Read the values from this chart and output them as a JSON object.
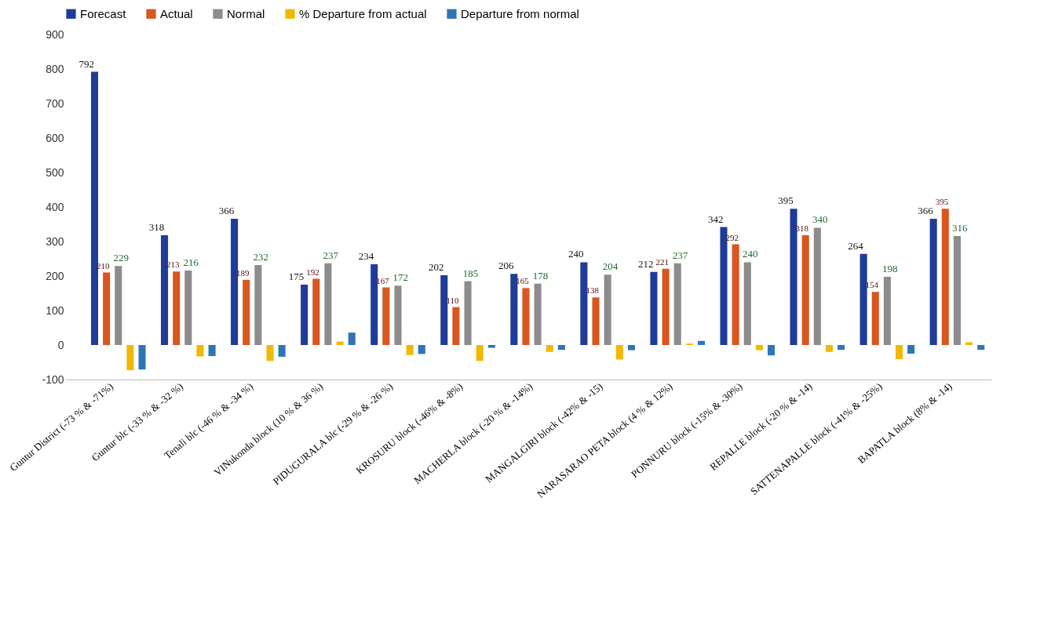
{
  "chart_data": {
    "type": "bar",
    "categories": [
      "Guntur District (-73 % & -71%)",
      "Guntur blc (-33 % & -32 %)",
      "Tenali blc (-46 % & -34 %)",
      "VINukonda block (10 % & 36 %)",
      "PIDUGURALA blc (-29 % & -26 %)",
      "KROSURU block (-46% & -8%)",
      "MACHERLA block (-20 % & -14%)",
      "MANGALGIRI block (-42% & -15)",
      "NARASARAO PETA block (4 % & 12%)",
      "PONNURU block (-15% & -30%)",
      "REPALLE block (-20 % & -14)",
      "SATTENAPALLE block (-41% & -25%)",
      "BAPATLA block (8% & -14)"
    ],
    "series": [
      {
        "name": "Forecast",
        "color": "#1f3c98",
        "values": [
          792,
          318,
          366,
          175,
          234,
          202,
          206,
          240,
          212,
          342,
          395,
          264,
          366
        ],
        "value_labels": [
          "792",
          "318",
          "366",
          "175",
          "234",
          "202",
          "206",
          "240",
          "212",
          "342",
          "395",
          "264",
          "366"
        ]
      },
      {
        "name": "Actual",
        "color": "#d9561e",
        "values": [
          210,
          213,
          189,
          192,
          167,
          110,
          165,
          138,
          221,
          292,
          318,
          154,
          395
        ],
        "value_labels": [
          "210",
          "213",
          "189",
          "192",
          "167",
          "110",
          "165",
          "138",
          "221",
          "292",
          "318",
          "154",
          "395"
        ]
      },
      {
        "name": "Normal",
        "color": "#8c8c8c",
        "values": [
          229,
          216,
          232,
          237,
          172,
          185,
          178,
          204,
          237,
          240,
          340,
          198,
          316
        ],
        "value_labels": [
          "229",
          "216",
          "232",
          "237",
          "172",
          "185",
          "178",
          "204",
          "237",
          "240",
          "340",
          "198",
          "316"
        ]
      },
      {
        "name": "% Departure from actual",
        "color": "#f2b800",
        "values": [
          -73,
          -33,
          -46,
          10,
          -29,
          -46,
          -20,
          -42,
          4,
          -15,
          -20,
          -41,
          8
        ]
      },
      {
        "name": "Departure from normal",
        "color": "#2e75b6",
        "values": [
          -71,
          -32,
          -34,
          36,
          -26,
          -8,
          -14,
          -15,
          12,
          -30,
          -14,
          -25,
          -14
        ]
      }
    ],
    "ylim": [
      -100,
      900
    ],
    "yticks": [
      -100,
      0,
      100,
      200,
      300,
      400,
      500,
      600,
      700,
      800,
      900
    ],
    "grid": false,
    "legend": "top"
  }
}
